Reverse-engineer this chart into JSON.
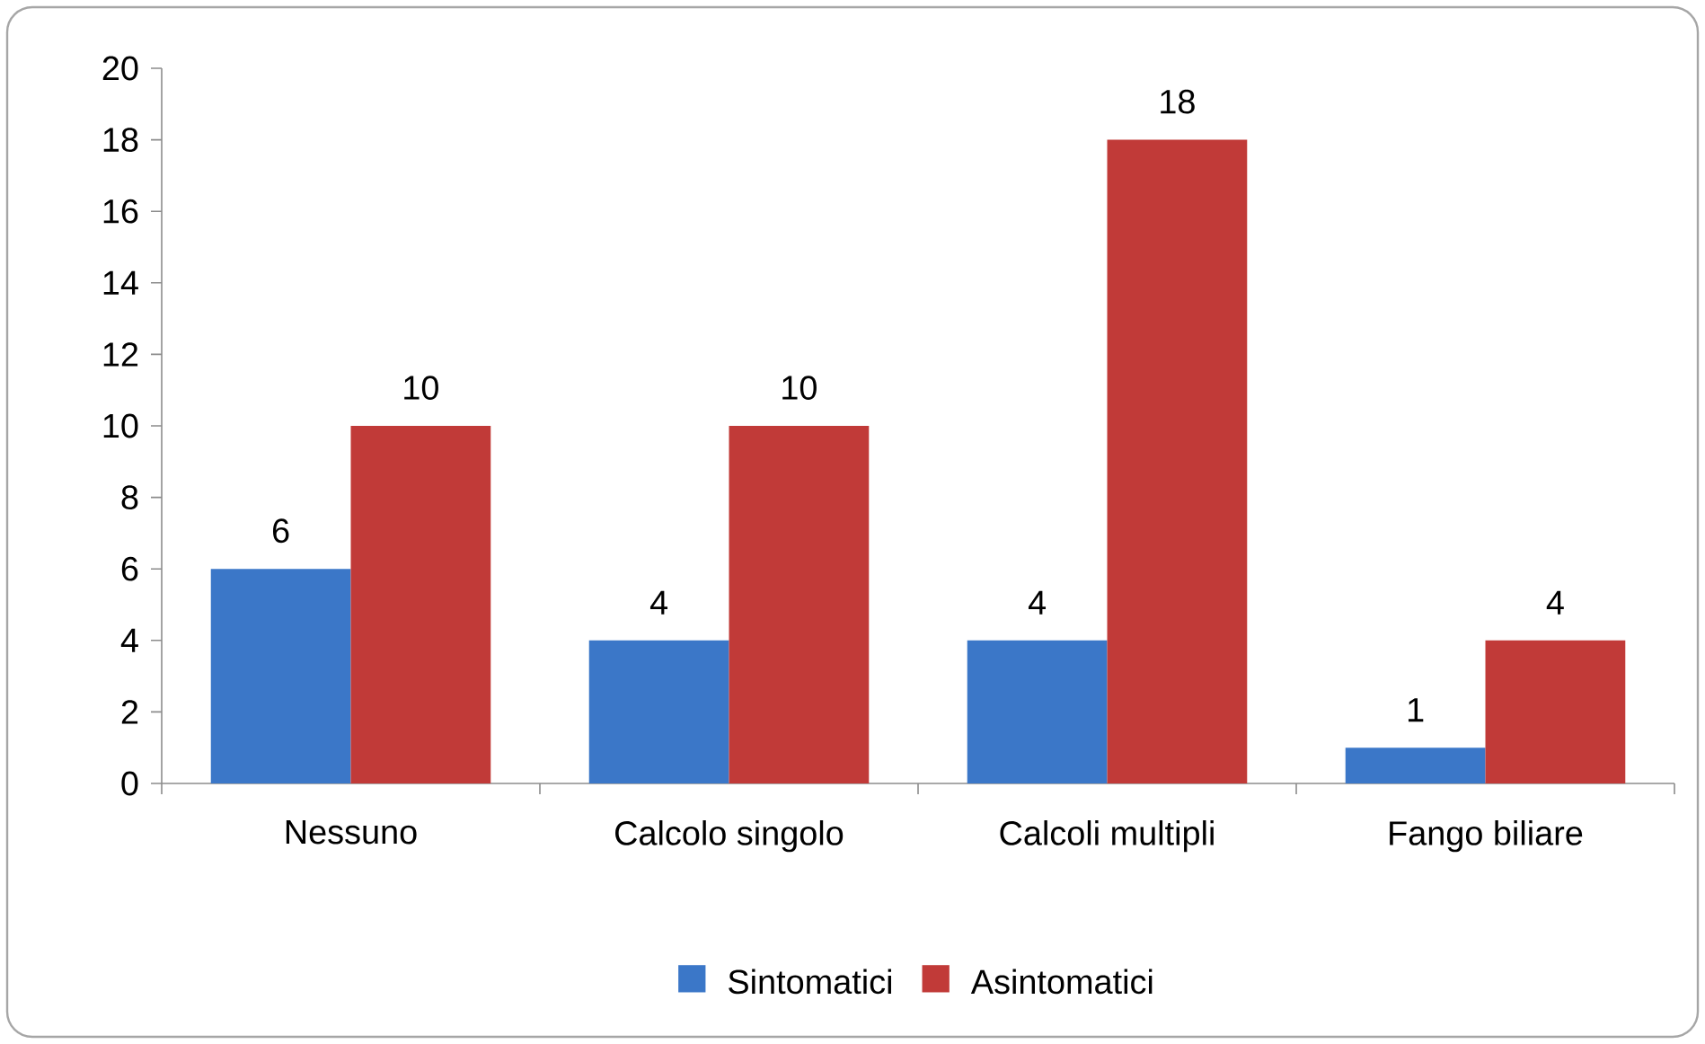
{
  "chart_data": {
    "type": "bar",
    "categories": [
      "Nessuno",
      "Calcolo singolo",
      "Calcoli multipli",
      "Fango biliare"
    ],
    "series": [
      {
        "name": "Sintomatici",
        "color": "#3b77c8",
        "values": [
          6,
          4,
          4,
          1
        ]
      },
      {
        "name": "Asintomatici",
        "color": "#c13a38",
        "values": [
          10,
          10,
          18,
          4
        ]
      }
    ],
    "ylim": [
      0,
      20
    ],
    "yticks": [
      0,
      2,
      4,
      6,
      8,
      10,
      12,
      14,
      16,
      18,
      20
    ],
    "data_labels": true,
    "legend": "bottom",
    "grid": false
  }
}
